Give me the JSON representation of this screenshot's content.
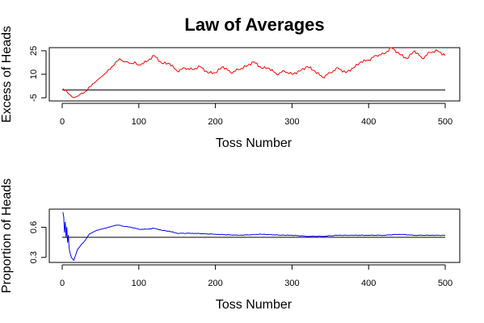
{
  "title": "Law of Averages",
  "chart_data": [
    {
      "type": "line",
      "xlabel": "Toss Number",
      "ylabel": "Excess of Heads",
      "xlim": [
        0,
        500
      ],
      "ylim": [
        -7,
        27
      ],
      "xticks": [
        0,
        100,
        200,
        300,
        400,
        500
      ],
      "yticks": [
        -5,
        10,
        25
      ],
      "reference_line": 0,
      "grid": false,
      "series": [
        {
          "color": "#ff0000",
          "x": [
            1,
            5,
            10,
            15,
            20,
            25,
            30,
            35,
            40,
            45,
            50,
            55,
            60,
            65,
            70,
            75,
            80,
            85,
            90,
            95,
            100,
            110,
            120,
            130,
            140,
            150,
            160,
            170,
            180,
            190,
            200,
            210,
            220,
            230,
            240,
            250,
            260,
            270,
            280,
            290,
            300,
            310,
            320,
            330,
            340,
            350,
            360,
            370,
            380,
            390,
            400,
            410,
            420,
            430,
            440,
            450,
            460,
            470,
            480,
            490,
            500
          ],
          "y": [
            1,
            0,
            -3,
            -5,
            -4,
            -2,
            -1,
            2,
            4,
            6,
            8,
            10,
            13,
            15,
            18,
            20,
            18,
            18,
            17,
            18,
            16,
            18,
            22,
            17,
            17,
            12,
            14,
            13,
            15,
            11,
            11,
            15,
            11,
            13,
            15,
            18,
            14,
            14,
            10,
            12,
            10,
            12,
            15,
            12,
            8,
            11,
            14,
            11,
            14,
            18,
            19,
            22,
            23,
            27,
            23,
            20,
            25,
            20,
            24,
            25,
            22
          ]
        }
      ]
    },
    {
      "type": "line",
      "xlabel": "Toss Number",
      "ylabel": "Proportion of Heads",
      "xlim": [
        0,
        500
      ],
      "ylim": [
        0.25,
        0.78
      ],
      "xticks": [
        0,
        100,
        200,
        300,
        400,
        500
      ],
      "yticks": [
        0.3,
        0.6
      ],
      "reference_line": 0.5,
      "grid": false,
      "series": [
        {
          "color": "#0000ff",
          "x": [
            1,
            2,
            3,
            4,
            5,
            6,
            7,
            8,
            9,
            10,
            12,
            15,
            20,
            25,
            30,
            35,
            40,
            45,
            50,
            55,
            60,
            65,
            70,
            75,
            80,
            90,
            100,
            110,
            120,
            130,
            140,
            150,
            170,
            200,
            230,
            260,
            290,
            300,
            320,
            340,
            360,
            380,
            400,
            420,
            440,
            460,
            480,
            500
          ],
          "y": [
            0.75,
            0.7,
            0.55,
            0.65,
            0.5,
            0.6,
            0.45,
            0.52,
            0.4,
            0.35,
            0.3,
            0.27,
            0.38,
            0.43,
            0.47,
            0.53,
            0.55,
            0.57,
            0.58,
            0.59,
            0.6,
            0.61,
            0.62,
            0.62,
            0.61,
            0.6,
            0.58,
            0.58,
            0.59,
            0.57,
            0.56,
            0.54,
            0.54,
            0.53,
            0.52,
            0.53,
            0.52,
            0.52,
            0.51,
            0.51,
            0.52,
            0.52,
            0.52,
            0.52,
            0.53,
            0.52,
            0.52,
            0.52
          ]
        }
      ]
    }
  ]
}
